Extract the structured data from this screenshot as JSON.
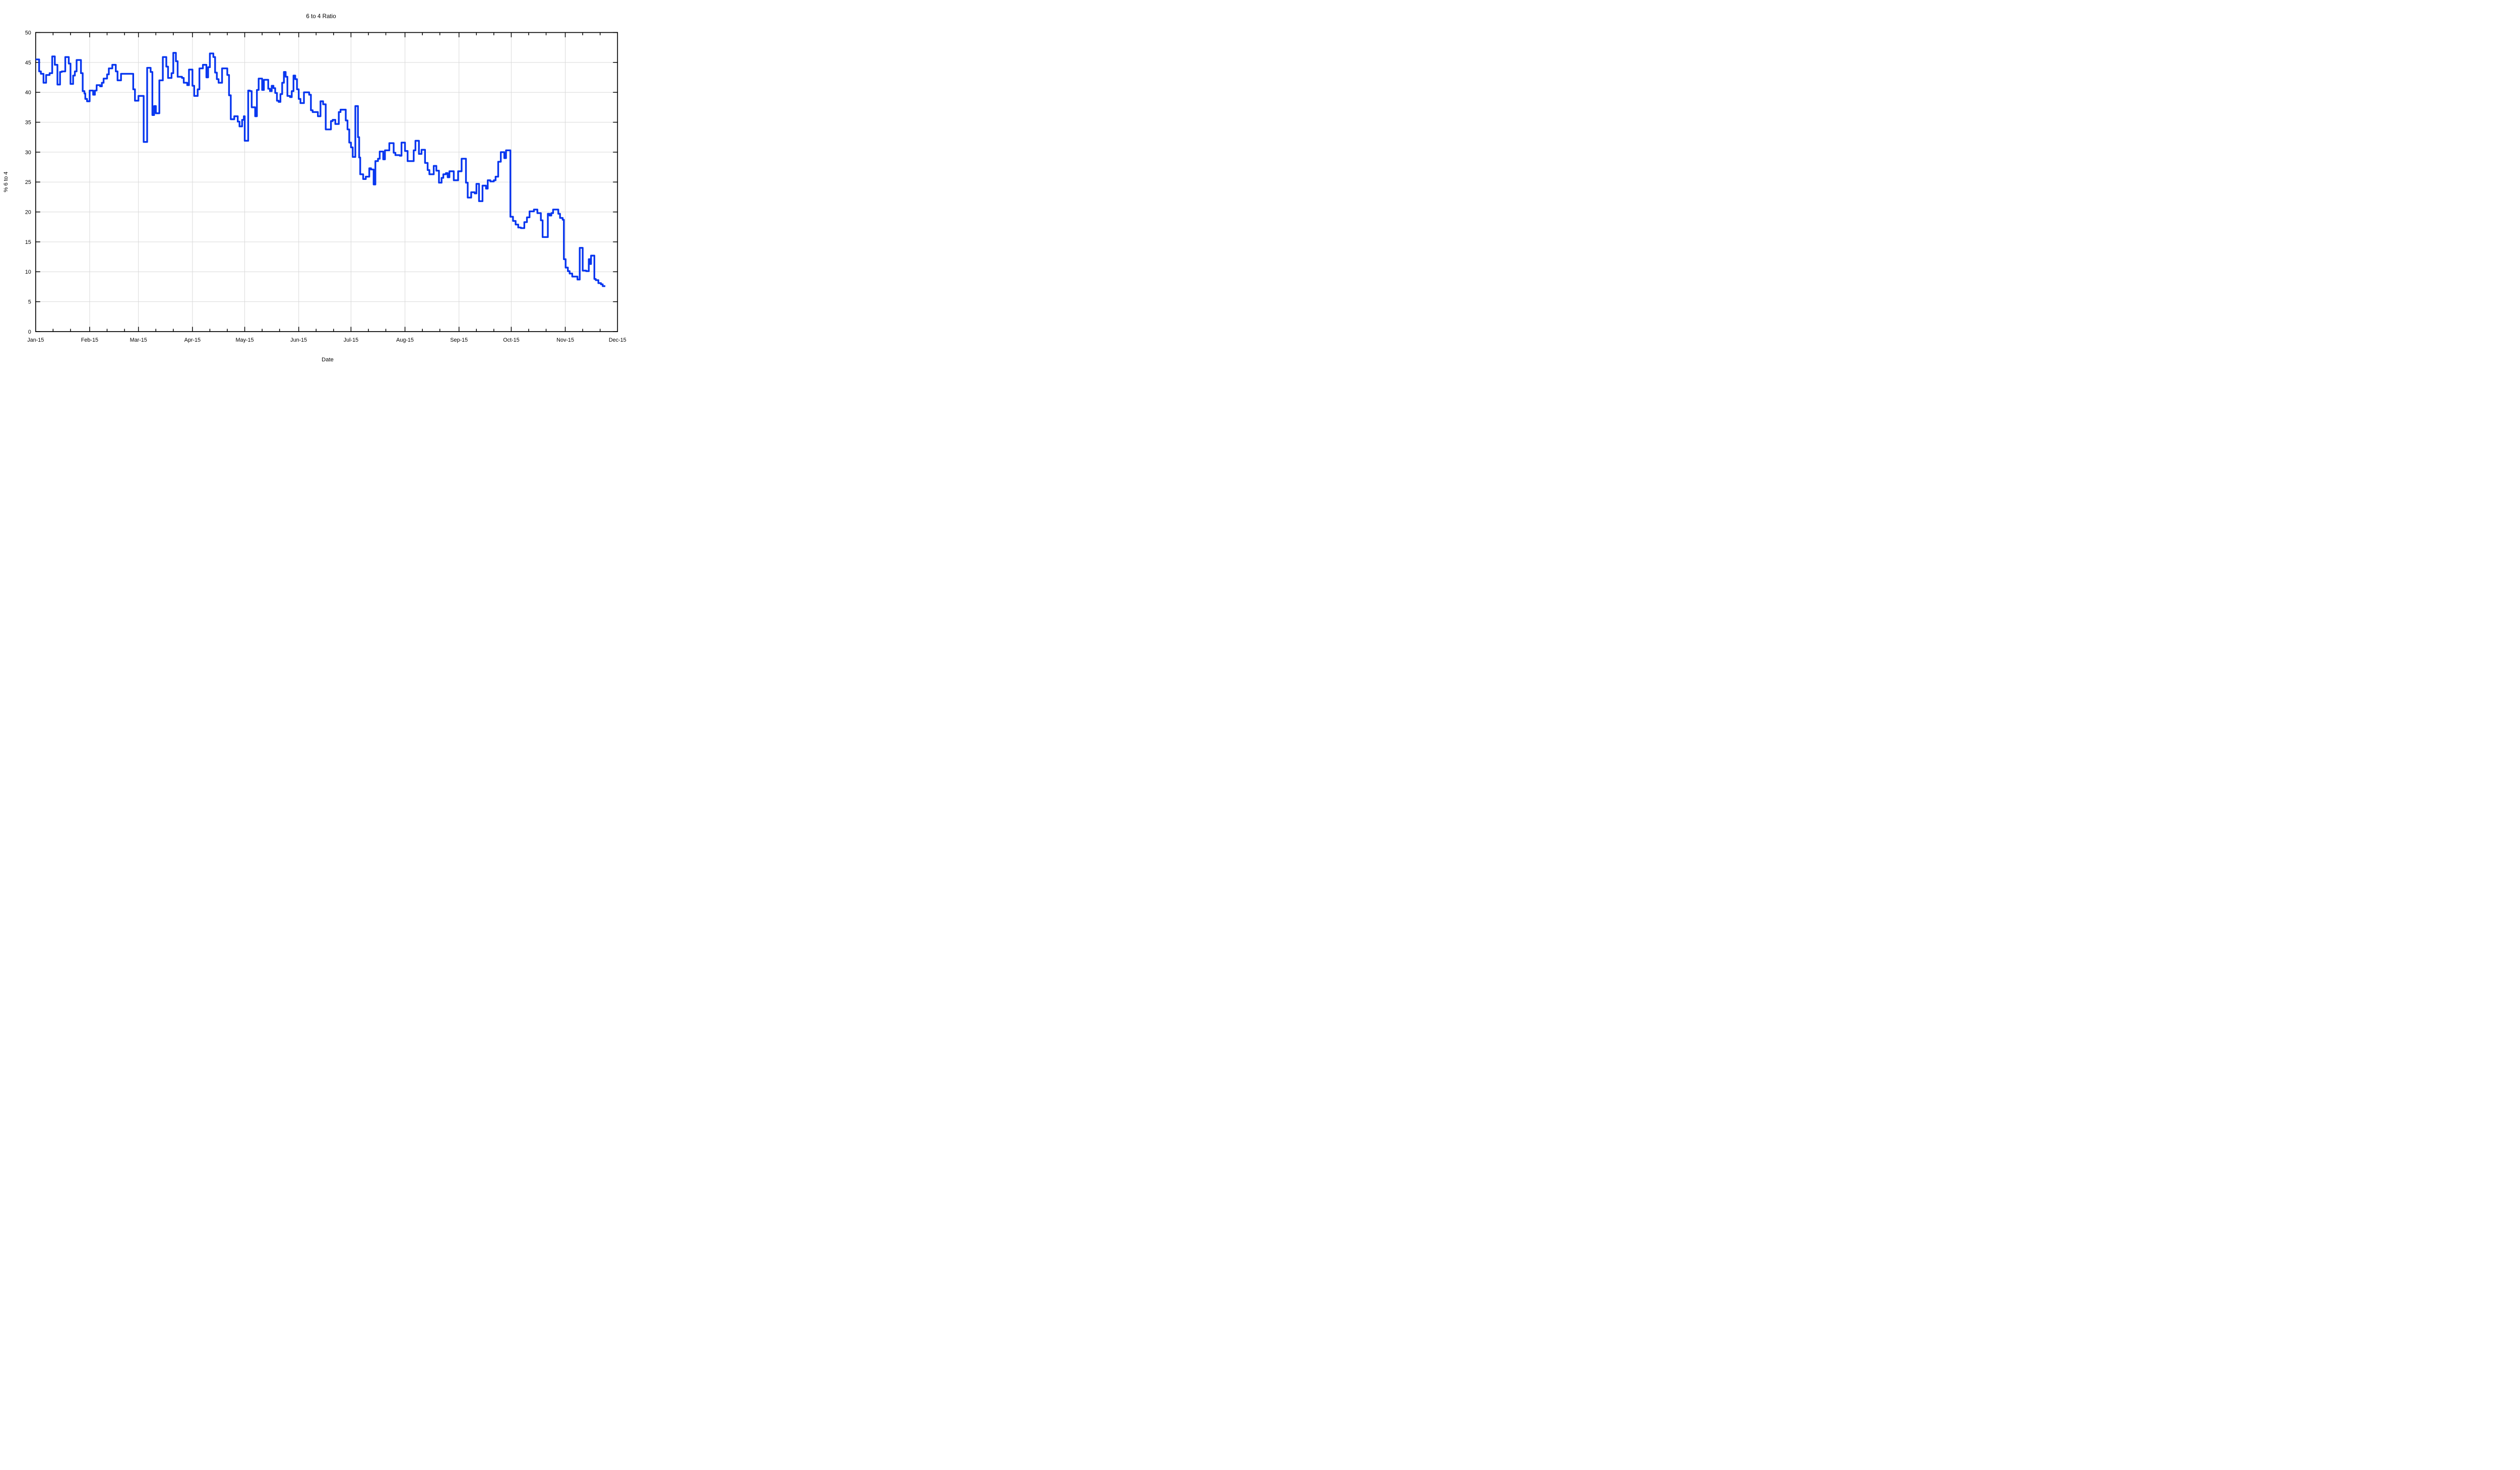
{
  "chart_data": {
    "type": "line",
    "title": "6 to 4 Ratio",
    "xlabel": "Date",
    "ylabel": "% 6 to 4",
    "ylim": [
      0,
      50
    ],
    "ytick_interval": 5,
    "grid": {
      "show": true,
      "color": "#d9d9d9"
    },
    "legend": "none",
    "x_axis": {
      "tick_labels": [
        "Jan-15",
        "Feb-15",
        "Mar-15",
        "Apr-15",
        "May-15",
        "Jun-15",
        "Jul-15",
        "Aug-15",
        "Sep-15",
        "Oct-15",
        "Nov-15",
        "Dec-15"
      ],
      "month_start_days": [
        0,
        31,
        59,
        90,
        120,
        151,
        181,
        212,
        243,
        273,
        304,
        334
      ],
      "minor_tick_offsets_days": [
        10,
        20
      ],
      "range_days": [
        0,
        334
      ]
    },
    "series": [
      {
        "name": "6 to 4 Ratio",
        "color": "#0635ef",
        "line_width": 3.4,
        "step_mode": "post",
        "end_day": 327,
        "points": [
          [
            0,
            45.5
          ],
          [
            2,
            43.5
          ],
          [
            3,
            43.1
          ],
          [
            4.5,
            41.6
          ],
          [
            6,
            42.9
          ],
          [
            8,
            43.2
          ],
          [
            9.5,
            46.0
          ],
          [
            11,
            44.6
          ],
          [
            12.5,
            41.3
          ],
          [
            14,
            43.4
          ],
          [
            15,
            43.5
          ],
          [
            17,
            45.9
          ],
          [
            19,
            44.8
          ],
          [
            20,
            41.4
          ],
          [
            21.5,
            42.8
          ],
          [
            22.5,
            43.5
          ],
          [
            23.5,
            45.4
          ],
          [
            26,
            43.2
          ],
          [
            27,
            40.2
          ],
          [
            28,
            39.8
          ],
          [
            28.5,
            38.9
          ],
          [
            29.5,
            38.5
          ],
          [
            31,
            40.3
          ],
          [
            33,
            39.6
          ],
          [
            34,
            40.3
          ],
          [
            35,
            41.2
          ],
          [
            37,
            41.0
          ],
          [
            38,
            41.6
          ],
          [
            39,
            42.3
          ],
          [
            41,
            43.0
          ],
          [
            42,
            44.0
          ],
          [
            44,
            44.6
          ],
          [
            46,
            43.5
          ],
          [
            47,
            42.0
          ],
          [
            49,
            43.1
          ],
          [
            56,
            40.5
          ],
          [
            57,
            38.6
          ],
          [
            59,
            39.4
          ],
          [
            62,
            31.7
          ],
          [
            64,
            44.1
          ],
          [
            66,
            43.4
          ],
          [
            67,
            36.2
          ],
          [
            68,
            37.7
          ],
          [
            69,
            36.5
          ],
          [
            71,
            42.0
          ],
          [
            73,
            45.9
          ],
          [
            75,
            44.3
          ],
          [
            76,
            42.4
          ],
          [
            78,
            43.2
          ],
          [
            79,
            46.6
          ],
          [
            80.5,
            45.2
          ],
          [
            81.5,
            42.6
          ],
          [
            84,
            42.4
          ],
          [
            85,
            41.6
          ],
          [
            87,
            41.2
          ],
          [
            88,
            43.8
          ],
          [
            90,
            41.1
          ],
          [
            91,
            39.4
          ],
          [
            93,
            40.5
          ],
          [
            94,
            44.0
          ],
          [
            96,
            44.6
          ],
          [
            98,
            42.5
          ],
          [
            99,
            44.2
          ],
          [
            100,
            46.5
          ],
          [
            102,
            45.9
          ],
          [
            103,
            43.3
          ],
          [
            104,
            42.2
          ],
          [
            105,
            41.6
          ],
          [
            107,
            44.0
          ],
          [
            110,
            42.9
          ],
          [
            111,
            39.5
          ],
          [
            112,
            35.5
          ],
          [
            114,
            36.0
          ],
          [
            116,
            35.1
          ],
          [
            117,
            34.3
          ],
          [
            118.5,
            35.4
          ],
          [
            119.5,
            36.0
          ],
          [
            120,
            31.9
          ],
          [
            122,
            40.3
          ],
          [
            123,
            40.2
          ],
          [
            124,
            37.5
          ],
          [
            126,
            36.0
          ],
          [
            127,
            40.4
          ],
          [
            128,
            42.3
          ],
          [
            130,
            40.4
          ],
          [
            131,
            42.1
          ],
          [
            133.5,
            40.6
          ],
          [
            134.5,
            40.2
          ],
          [
            135.5,
            41.1
          ],
          [
            136.5,
            40.7
          ],
          [
            137.5,
            39.9
          ],
          [
            138.5,
            38.6
          ],
          [
            139.5,
            38.4
          ],
          [
            140.5,
            39.7
          ],
          [
            141.5,
            41.6
          ],
          [
            142.5,
            43.4
          ],
          [
            143.5,
            42.6
          ],
          [
            144.5,
            39.4
          ],
          [
            146,
            39.2
          ],
          [
            147,
            40.2
          ],
          [
            148,
            42.8
          ],
          [
            149,
            42.2
          ],
          [
            150,
            40.5
          ],
          [
            151,
            38.9
          ],
          [
            152,
            38.2
          ],
          [
            154,
            40.0
          ],
          [
            157,
            39.6
          ],
          [
            158,
            37.0
          ],
          [
            159,
            36.7
          ],
          [
            162,
            36.0
          ],
          [
            163.5,
            38.5
          ],
          [
            165,
            38.0
          ],
          [
            166.5,
            33.8
          ],
          [
            169.5,
            35.2
          ],
          [
            170.5,
            35.4
          ],
          [
            172,
            34.7
          ],
          [
            174,
            36.7
          ],
          [
            175,
            37.1
          ],
          [
            178,
            35.3
          ],
          [
            179,
            33.8
          ],
          [
            180,
            31.6
          ],
          [
            181,
            30.8
          ],
          [
            182,
            29.2
          ],
          [
            183.5,
            37.7
          ],
          [
            185,
            32.5
          ],
          [
            185.7,
            29.1
          ],
          [
            186.3,
            26.3
          ],
          [
            188,
            25.5
          ],
          [
            189.5,
            25.9
          ],
          [
            191.5,
            27.3
          ],
          [
            192.5,
            27.1
          ],
          [
            194,
            24.6
          ],
          [
            195,
            28.5
          ],
          [
            196.5,
            28.9
          ],
          [
            197.5,
            30.1
          ],
          [
            199.5,
            28.8
          ],
          [
            200.5,
            30.3
          ],
          [
            203,
            31.5
          ],
          [
            205.5,
            29.9
          ],
          [
            206.5,
            29.5
          ],
          [
            209,
            29.4
          ],
          [
            210,
            31.6
          ],
          [
            212,
            30.2
          ],
          [
            213.5,
            28.5
          ],
          [
            217,
            30.3
          ],
          [
            218,
            31.9
          ],
          [
            220,
            29.7
          ],
          [
            221.5,
            30.4
          ],
          [
            223.5,
            28.2
          ],
          [
            225,
            27.0
          ],
          [
            226,
            26.3
          ],
          [
            228.5,
            27.7
          ],
          [
            230,
            26.9
          ],
          [
            231.5,
            24.9
          ],
          [
            233,
            25.7
          ],
          [
            234,
            26.3
          ],
          [
            235.5,
            26.5
          ],
          [
            236.5,
            25.8
          ],
          [
            237.5,
            26.8
          ],
          [
            240,
            25.3
          ],
          [
            242.5,
            26.8
          ],
          [
            244.5,
            28.9
          ],
          [
            247,
            24.9
          ],
          [
            248,
            22.4
          ],
          [
            250,
            23.3
          ],
          [
            252,
            23.1
          ],
          [
            253,
            24.7
          ],
          [
            254.5,
            21.8
          ],
          [
            256.5,
            24.4
          ],
          [
            258.5,
            23.9
          ],
          [
            259.5,
            25.3
          ],
          [
            261,
            25.1
          ],
          [
            263,
            25.3
          ],
          [
            264,
            25.9
          ],
          [
            265.5,
            28.4
          ],
          [
            267,
            30.0
          ],
          [
            269,
            29.0
          ],
          [
            270,
            30.3
          ],
          [
            272.5,
            19.2
          ],
          [
            274,
            18.5
          ],
          [
            275.5,
            17.9
          ],
          [
            277,
            17.4
          ],
          [
            278.5,
            17.3
          ],
          [
            280.5,
            18.3
          ],
          [
            282,
            19.1
          ],
          [
            283.5,
            20.1
          ],
          [
            286,
            20.4
          ],
          [
            288,
            19.8
          ],
          [
            290,
            18.6
          ],
          [
            291,
            15.8
          ],
          [
            294,
            19.7
          ],
          [
            295,
            19.4
          ],
          [
            296,
            19.8
          ],
          [
            297,
            20.4
          ],
          [
            300,
            19.7
          ],
          [
            301,
            19.0
          ],
          [
            302.5,
            18.7
          ],
          [
            303.2,
            12.1
          ],
          [
            304.2,
            10.7
          ],
          [
            305.5,
            10.1
          ],
          [
            306.5,
            9.7
          ],
          [
            308,
            9.2
          ],
          [
            311,
            8.7
          ],
          [
            312.3,
            14.0
          ],
          [
            314,
            10.2
          ],
          [
            316,
            10.1
          ],
          [
            317.5,
            12.1
          ],
          [
            318.3,
            11.3
          ],
          [
            318.8,
            12.7
          ],
          [
            320.7,
            8.8
          ],
          [
            321.5,
            8.6
          ],
          [
            323,
            8.1
          ],
          [
            324.5,
            7.9
          ],
          [
            325.5,
            7.6
          ]
        ]
      }
    ]
  }
}
